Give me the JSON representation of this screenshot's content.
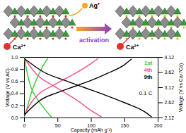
{
  "chart_data": {
    "type": "line",
    "x_label": "Capacity (mAh g⁻¹)",
    "y_label": "Voltage (V vs AC)",
    "y2_label": "Voltage (V vs Ca²⁺/Ca)",
    "annotations": [
      "0.1 C"
    ],
    "xlim": [
      0,
      200
    ],
    "xticks": [
      0,
      50,
      100,
      150,
      200
    ],
    "ylim": [
      0,
      1
    ],
    "yticks": [
      {
        "value": 0,
        "label": "0.0"
      },
      0.2,
      0.4,
      0.6,
      0.8,
      {
        "value": 1,
        "label": "1.0"
      }
    ],
    "y2lim": [
      2.12,
      4.12
    ],
    "y2ticks": [
      2.12,
      2.62,
      3.12,
      3.62,
      4.12
    ],
    "series": [
      {
        "name": "1st",
        "color": "#33cc33",
        "x": [
          0,
          5,
          10,
          15,
          20,
          25,
          30,
          35,
          null,
          0,
          5,
          10,
          20,
          30,
          40
        ],
        "values": [
          0.02,
          0.2,
          0.4,
          0.55,
          0.68,
          0.8,
          0.9,
          0.98,
          null,
          1.0,
          0.7,
          0.5,
          0.3,
          0.15,
          0.02
        ]
      },
      {
        "name": "4th",
        "color": "#f0508c",
        "x": [
          0,
          10,
          20,
          40,
          60,
          80,
          100,
          110,
          null,
          0,
          20,
          40,
          60,
          80,
          100,
          115
        ],
        "values": [
          0.05,
          0.25,
          0.38,
          0.52,
          0.64,
          0.76,
          0.9,
          0.98,
          null,
          0.98,
          0.7,
          0.55,
          0.42,
          0.28,
          0.12,
          0.02
        ]
      },
      {
        "name": "9th",
        "color": "#000000",
        "x": [
          0,
          25,
          50,
          75,
          100,
          125,
          150,
          160,
          null,
          0,
          30,
          60,
          90,
          120,
          150,
          180,
          190
        ],
        "values": [
          0.05,
          0.3,
          0.42,
          0.52,
          0.62,
          0.74,
          0.88,
          0.97,
          null,
          0.98,
          0.75,
          0.62,
          0.5,
          0.38,
          0.25,
          0.1,
          0.02
        ]
      }
    ]
  },
  "diagram": {
    "inserted_ion": "Ag⁺",
    "host_ion": "Ca²⁺",
    "arrow_label": "activation"
  }
}
